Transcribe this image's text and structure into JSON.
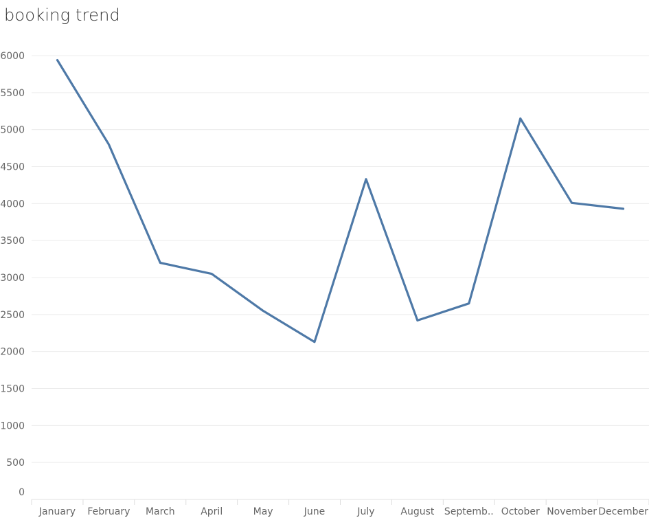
{
  "chart_data": {
    "type": "line",
    "title": "booking trend",
    "xlabel": "",
    "ylabel": "",
    "categories": [
      "January",
      "February",
      "March",
      "April",
      "May",
      "June",
      "July",
      "August",
      "Septemb..",
      "October",
      "November",
      "December"
    ],
    "series": [
      {
        "values": [
          5940,
          4800,
          3200,
          3050,
          2550,
          2130,
          4330,
          2420,
          2650,
          5150,
          4010,
          3930
        ]
      }
    ],
    "yticks": [
      0,
      500,
      1000,
      1500,
      2000,
      2500,
      3000,
      3500,
      4000,
      4500,
      5000,
      5500,
      6000
    ],
    "ytick_labels": [
      "0",
      "500",
      "1000",
      "1500",
      "2000",
      "2500",
      "3000",
      "3500",
      "4000",
      "4500",
      "5000",
      "5500",
      "6000"
    ],
    "ylim": [
      0,
      6000
    ],
    "grid": true,
    "legend": "none",
    "colors": {
      "line": "#4e79a7",
      "grid": "#ececec",
      "text": "#666666",
      "title": "#333333"
    }
  }
}
